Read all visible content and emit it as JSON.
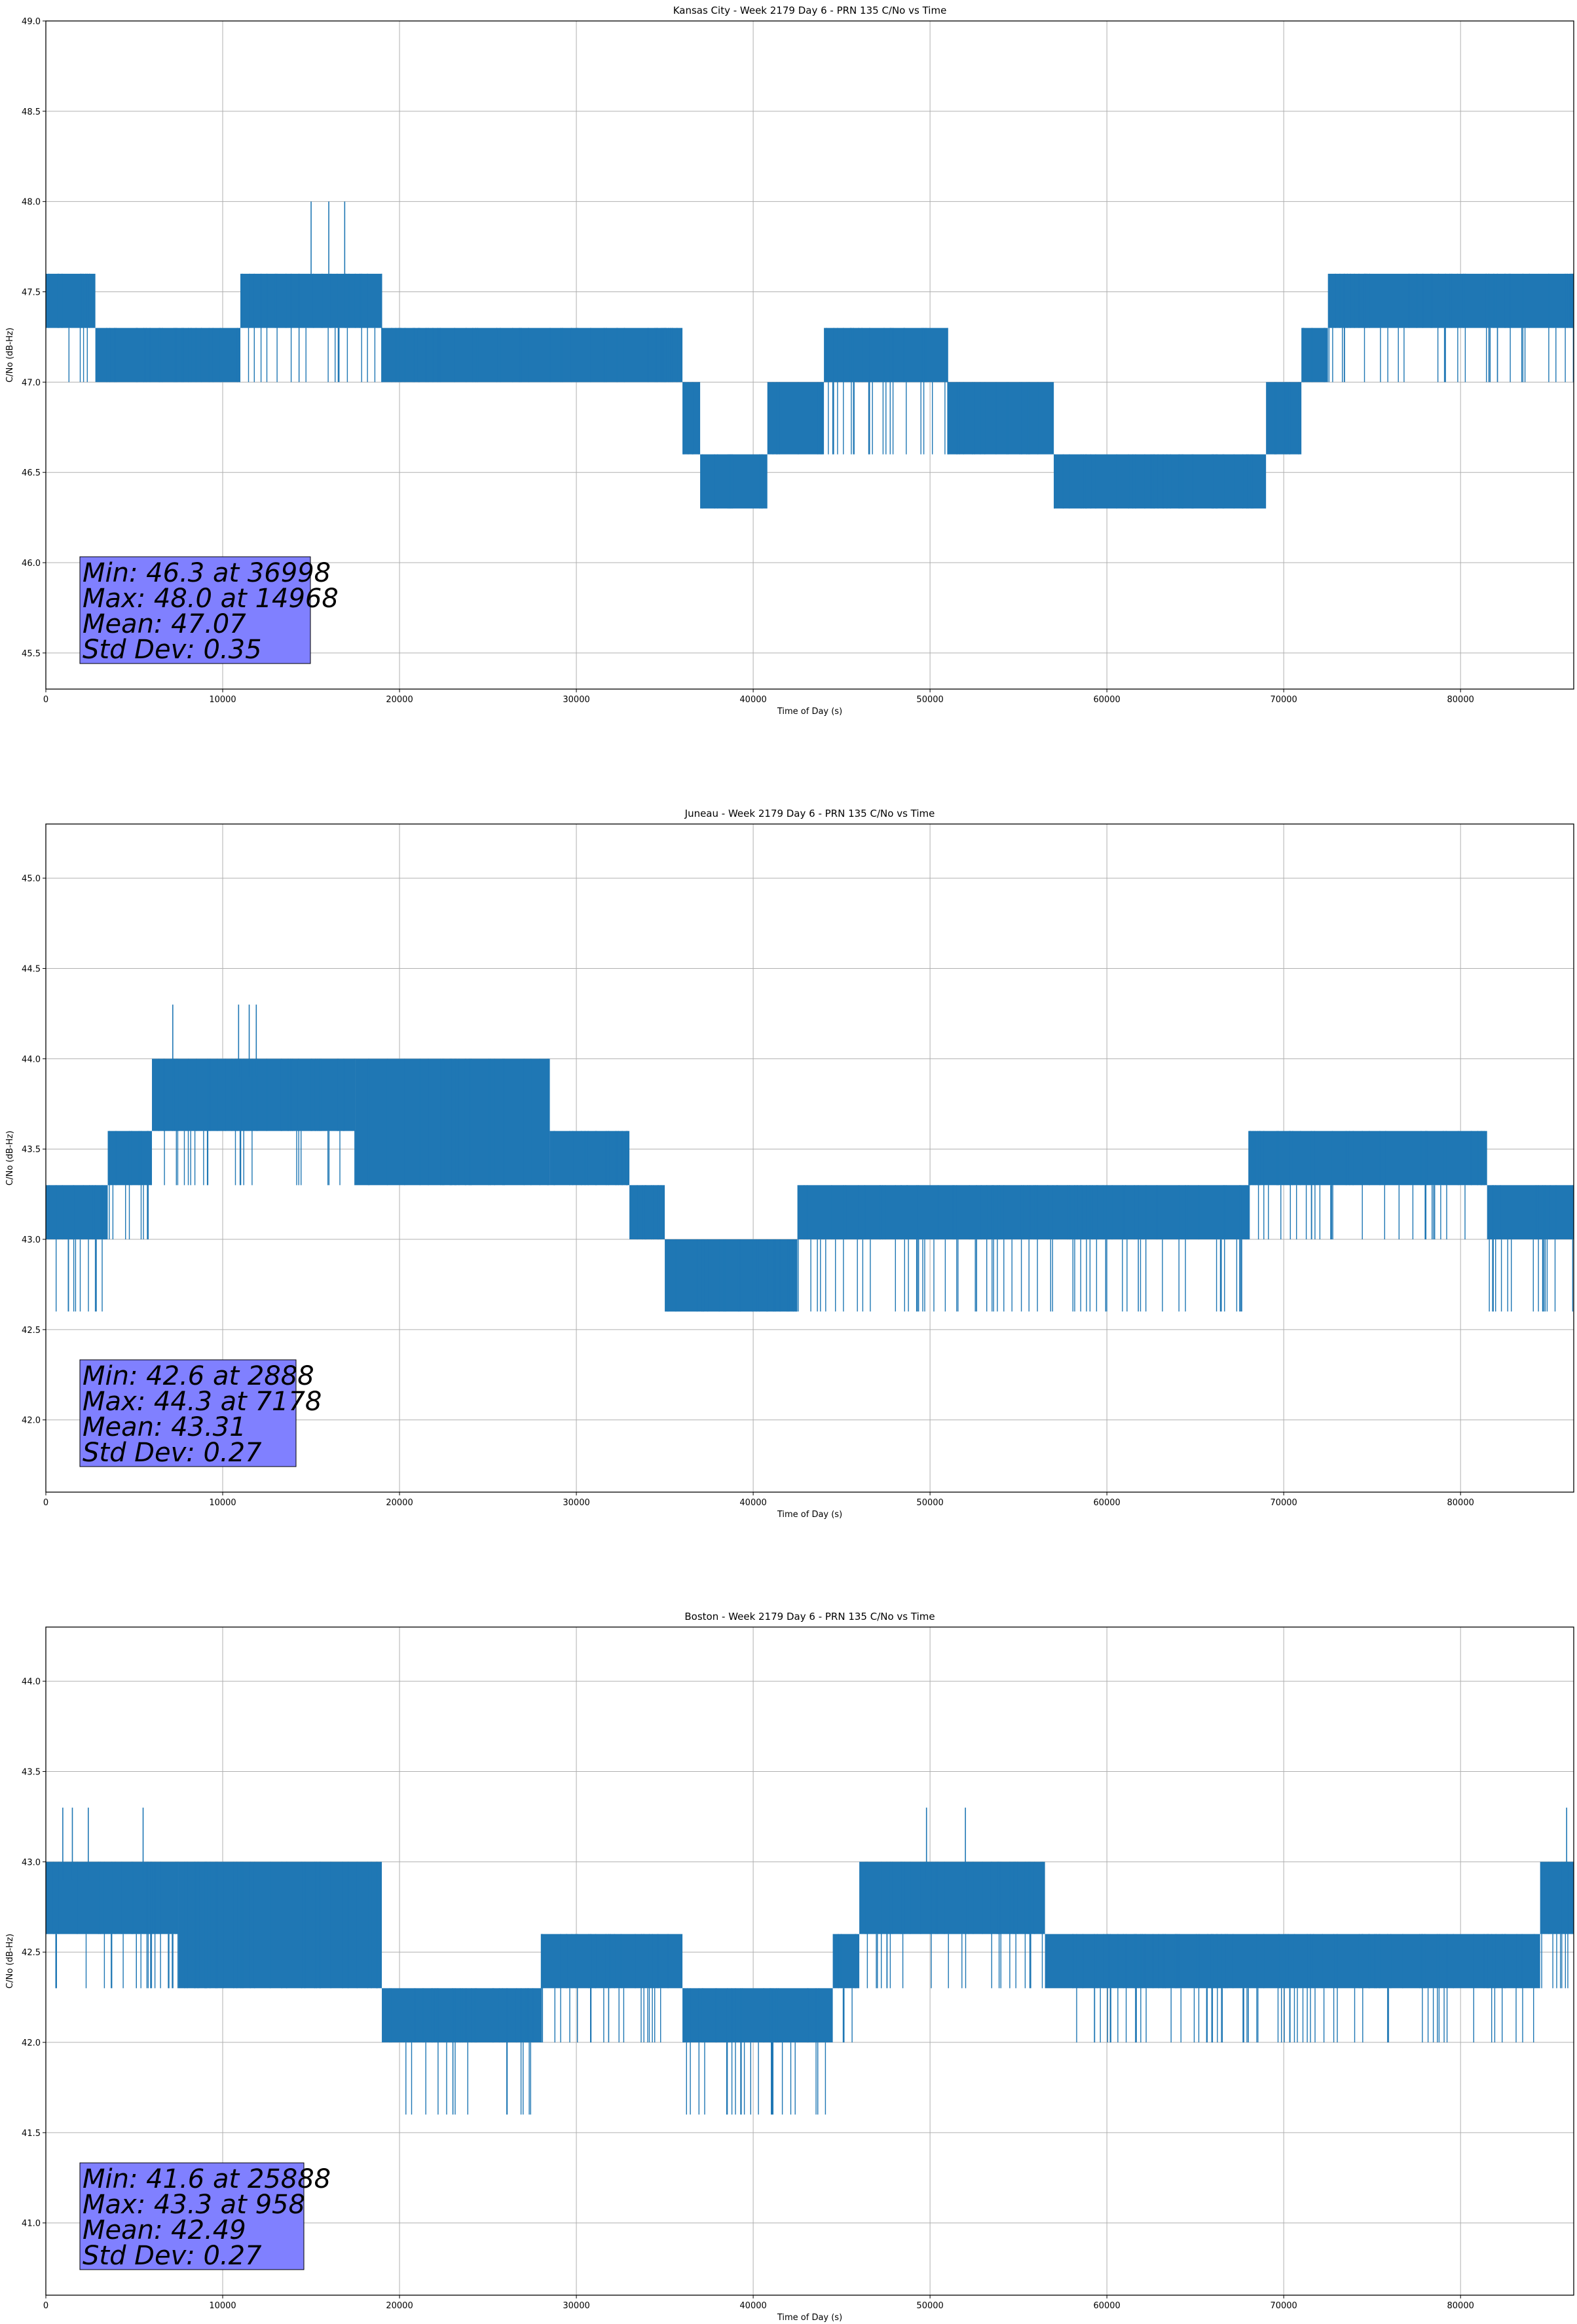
{
  "colors": {
    "series": "#1f77b4",
    "stats_box": "#8080ff",
    "grid": "#b0b0b0",
    "axes": "#000000"
  },
  "chart_data": [
    {
      "type": "line",
      "title": "Kansas City - Week 2179 Day 6 - PRN 135 C/No vs Time",
      "xlabel": "Time of Day (s)",
      "ylabel": "C/No (dB-Hz)",
      "xlim": [
        0,
        86400
      ],
      "ylim": [
        45.3,
        49.0
      ],
      "xticks": [
        0,
        10000,
        20000,
        30000,
        40000,
        50000,
        60000,
        70000,
        80000
      ],
      "yticks": [
        45.5,
        46.0,
        46.5,
        47.0,
        47.5,
        48.0,
        48.5,
        49.0
      ],
      "grid": true,
      "series": [
        {
          "name": "C/No",
          "segments": [
            {
              "x0": 0,
              "x1": 2800,
              "base": 47.3,
              "high": 47.6,
              "low": 47.0
            },
            {
              "x0": 2800,
              "x1": 11000,
              "base": 47.0,
              "high": 47.3,
              "low": 47.0
            },
            {
              "x0": 11000,
              "x1": 19000,
              "base": 47.3,
              "high": 47.6,
              "low": 47.0
            },
            {
              "x0": 19000,
              "x1": 36000,
              "base": 47.0,
              "high": 47.3,
              "low": 47.0
            },
            {
              "x0": 36000,
              "x1": 37000,
              "base": 46.6,
              "high": 47.0,
              "low": 46.6
            },
            {
              "x0": 37000,
              "x1": 40800,
              "base": 46.3,
              "high": 46.6,
              "low": 46.3
            },
            {
              "x0": 40800,
              "x1": 44000,
              "base": 46.6,
              "high": 47.0,
              "low": 46.6
            },
            {
              "x0": 44000,
              "x1": 51000,
              "base": 47.0,
              "high": 47.3,
              "low": 46.6
            },
            {
              "x0": 51000,
              "x1": 57000,
              "base": 46.6,
              "high": 47.0,
              "low": 46.6
            },
            {
              "x0": 57000,
              "x1": 69000,
              "base": 46.3,
              "high": 46.6,
              "low": 46.3
            },
            {
              "x0": 69000,
              "x1": 71000,
              "base": 46.6,
              "high": 47.0,
              "low": 46.6
            },
            {
              "x0": 71000,
              "x1": 72500,
              "base": 47.0,
              "high": 47.3,
              "low": 47.0
            },
            {
              "x0": 72500,
              "x1": 86400,
              "base": 47.3,
              "high": 47.6,
              "low": 47.0
            }
          ],
          "spikes": [
            {
              "x": 15000,
              "y": 48.0
            },
            {
              "x": 16000,
              "y": 48.0
            },
            {
              "x": 16900,
              "y": 48.0
            }
          ]
        }
      ],
      "stats": {
        "min": "Min: 46.3 at 36998",
        "max": "Max: 48.0 at 14968",
        "mean": "Mean: 47.07",
        "std": "Std Dev: 0.35"
      }
    },
    {
      "type": "line",
      "title": "Juneau - Week 2179 Day 6 - PRN 135 C/No vs Time",
      "xlabel": "Time of Day (s)",
      "ylabel": "C/No (dB-Hz)",
      "xlim": [
        0,
        86400
      ],
      "ylim": [
        41.6,
        45.3
      ],
      "xticks": [
        0,
        10000,
        20000,
        30000,
        40000,
        50000,
        60000,
        70000,
        80000
      ],
      "yticks": [
        42.0,
        42.5,
        43.0,
        43.5,
        44.0,
        44.5,
        45.0
      ],
      "grid": true,
      "series": [
        {
          "name": "C/No",
          "segments": [
            {
              "x0": 0,
              "x1": 3500,
              "base": 43.0,
              "high": 43.3,
              "low": 42.6
            },
            {
              "x0": 3500,
              "x1": 6000,
              "base": 43.3,
              "high": 43.6,
              "low": 43.0
            },
            {
              "x0": 6000,
              "x1": 17500,
              "base": 43.6,
              "high": 44.0,
              "low": 43.3
            },
            {
              "x0": 17500,
              "x1": 28500,
              "base": 43.3,
              "high": 44.0,
              "low": 43.3
            },
            {
              "x0": 28500,
              "x1": 33000,
              "base": 43.3,
              "high": 43.6,
              "low": 43.3
            },
            {
              "x0": 33000,
              "x1": 35000,
              "base": 43.0,
              "high": 43.3,
              "low": 43.0
            },
            {
              "x0": 35000,
              "x1": 42500,
              "base": 42.6,
              "high": 43.0,
              "low": 42.6
            },
            {
              "x0": 42500,
              "x1": 68000,
              "base": 43.0,
              "high": 43.3,
              "low": 42.6
            },
            {
              "x0": 68000,
              "x1": 81500,
              "base": 43.3,
              "high": 43.6,
              "low": 43.0
            },
            {
              "x0": 81500,
              "x1": 86400,
              "base": 43.0,
              "high": 43.3,
              "low": 42.6
            }
          ],
          "spikes": [
            {
              "x": 7178,
              "y": 44.3
            },
            {
              "x": 10900,
              "y": 44.3
            },
            {
              "x": 11500,
              "y": 44.3
            },
            {
              "x": 11900,
              "y": 44.3
            }
          ]
        }
      ],
      "stats": {
        "min": "Min: 42.6 at 2888",
        "max": "Max: 44.3 at 7178",
        "mean": "Mean: 43.31",
        "std": "Std Dev: 0.27"
      }
    },
    {
      "type": "line",
      "title": "Boston - Week 2179 Day 6 - PRN 135 C/No vs Time",
      "xlabel": "Time of Day (s)",
      "ylabel": "C/No (dB-Hz)",
      "xlim": [
        0,
        86400
      ],
      "ylim": [
        40.6,
        44.3
      ],
      "xticks": [
        0,
        10000,
        20000,
        30000,
        40000,
        50000,
        60000,
        70000,
        80000
      ],
      "yticks": [
        41.0,
        41.5,
        42.0,
        42.5,
        43.0,
        43.5,
        44.0
      ],
      "grid": true,
      "series": [
        {
          "name": "C/No",
          "segments": [
            {
              "x0": 0,
              "x1": 7500,
              "base": 42.6,
              "high": 43.0,
              "low": 42.3
            },
            {
              "x0": 7500,
              "x1": 19000,
              "base": 42.3,
              "high": 43.0,
              "low": 42.3
            },
            {
              "x0": 19000,
              "x1": 28000,
              "base": 42.0,
              "high": 42.3,
              "low": 41.6
            },
            {
              "x0": 28000,
              "x1": 36000,
              "base": 42.3,
              "high": 42.6,
              "low": 42.0
            },
            {
              "x0": 36000,
              "x1": 44500,
              "base": 42.0,
              "high": 42.3,
              "low": 41.6
            },
            {
              "x0": 44500,
              "x1": 46000,
              "base": 42.3,
              "high": 42.6,
              "low": 42.0
            },
            {
              "x0": 46000,
              "x1": 56500,
              "base": 42.6,
              "high": 43.0,
              "low": 42.3
            },
            {
              "x0": 56500,
              "x1": 84500,
              "base": 42.3,
              "high": 42.6,
              "low": 42.0
            },
            {
              "x0": 84500,
              "x1": 86400,
              "base": 42.6,
              "high": 43.0,
              "low": 42.3
            }
          ],
          "spikes": [
            {
              "x": 958,
              "y": 43.3
            },
            {
              "x": 1500,
              "y": 43.3
            },
            {
              "x": 2400,
              "y": 43.3
            },
            {
              "x": 5500,
              "y": 43.3
            },
            {
              "x": 49800,
              "y": 43.3
            },
            {
              "x": 52000,
              "y": 43.3
            },
            {
              "x": 86000,
              "y": 43.3
            }
          ]
        }
      ],
      "stats": {
        "min": "Min: 41.6 at 25888",
        "max": "Max: 43.3 at 958",
        "mean": "Mean: 42.49",
        "std": "Std Dev: 0.27"
      }
    }
  ]
}
